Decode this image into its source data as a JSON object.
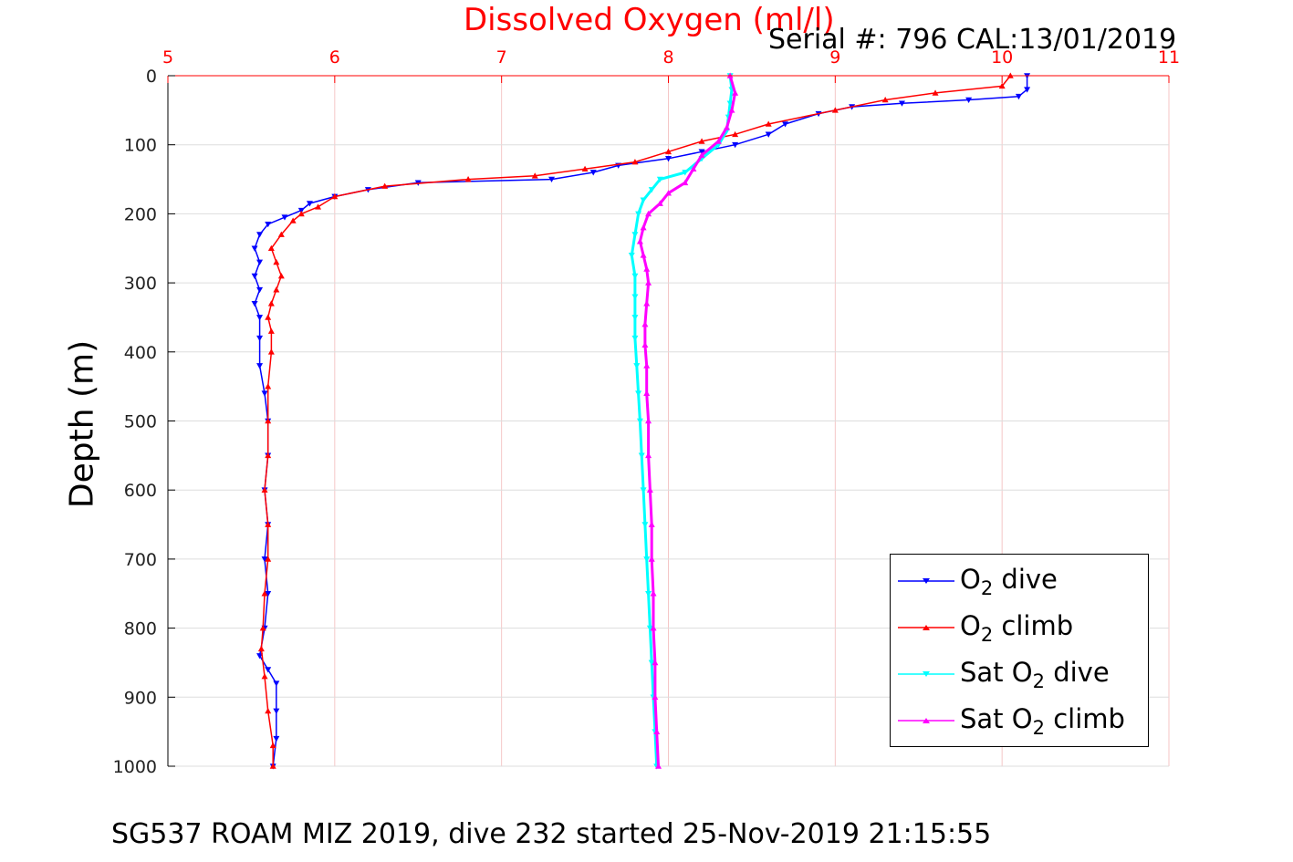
{
  "chart_data": {
    "type": "line",
    "title": "Dissolved Oxygen (ml/l)",
    "subtitle": "Serial #: 796  CAL:13/01/2019",
    "footer": "SG537 ROAM MIZ 2019, dive 232 started 25-Nov-2019 21:15:55",
    "xlabel": "",
    "ylabel": "Depth (m)",
    "xlim": [
      5,
      11
    ],
    "ylim": [
      0,
      1000
    ],
    "y_reversed": true,
    "x_axis_position": "top",
    "x_ticks": [
      "5",
      "6",
      "7",
      "8",
      "9",
      "10",
      "11"
    ],
    "y_ticks": [
      "0",
      "100",
      "200",
      "300",
      "400",
      "500",
      "600",
      "700",
      "800",
      "900",
      "1000"
    ],
    "grid": true,
    "legend_position": "bottom-right",
    "colors": {
      "o2_dive": "#0000ff",
      "o2_climb": "#ff0000",
      "sat_dive": "#00ffff",
      "sat_climb": "#ff00ff",
      "x_axis": "#ff0000",
      "title": "#ff0000",
      "grid_x": "#f5c6c6",
      "grid_y": "#dddddd"
    },
    "series": [
      {
        "name": "O2 dive",
        "legend_label": {
          "pre": "O",
          "sub": "2",
          "post": " dive"
        },
        "marker": "triangle-down",
        "points": [
          [
            10.15,
            0
          ],
          [
            10.15,
            20
          ],
          [
            10.1,
            30
          ],
          [
            9.8,
            35
          ],
          [
            9.4,
            40
          ],
          [
            9.1,
            45
          ],
          [
            8.9,
            55
          ],
          [
            8.7,
            70
          ],
          [
            8.6,
            85
          ],
          [
            8.4,
            100
          ],
          [
            8.2,
            110
          ],
          [
            8.0,
            120
          ],
          [
            7.7,
            130
          ],
          [
            7.55,
            140
          ],
          [
            7.3,
            150
          ],
          [
            6.5,
            155
          ],
          [
            6.2,
            165
          ],
          [
            6.0,
            175
          ],
          [
            5.85,
            185
          ],
          [
            5.8,
            195
          ],
          [
            5.7,
            205
          ],
          [
            5.6,
            215
          ],
          [
            5.55,
            230
          ],
          [
            5.52,
            250
          ],
          [
            5.55,
            270
          ],
          [
            5.52,
            290
          ],
          [
            5.55,
            310
          ],
          [
            5.52,
            330
          ],
          [
            5.55,
            350
          ],
          [
            5.55,
            380
          ],
          [
            5.55,
            420
          ],
          [
            5.58,
            460
          ],
          [
            5.6,
            500
          ],
          [
            5.6,
            550
          ],
          [
            5.58,
            600
          ],
          [
            5.6,
            650
          ],
          [
            5.58,
            700
          ],
          [
            5.6,
            750
          ],
          [
            5.58,
            800
          ],
          [
            5.55,
            840
          ],
          [
            5.6,
            860
          ],
          [
            5.65,
            880
          ],
          [
            5.65,
            920
          ],
          [
            5.65,
            960
          ],
          [
            5.63,
            1000
          ]
        ]
      },
      {
        "name": "O2 climb",
        "legend_label": {
          "pre": "O",
          "sub": "2",
          "post": " climb"
        },
        "marker": "triangle-up",
        "points": [
          [
            10.05,
            0
          ],
          [
            10.0,
            15
          ],
          [
            9.6,
            25
          ],
          [
            9.3,
            35
          ],
          [
            9.0,
            50
          ],
          [
            8.6,
            70
          ],
          [
            8.4,
            85
          ],
          [
            8.2,
            95
          ],
          [
            8.0,
            110
          ],
          [
            7.8,
            125
          ],
          [
            7.5,
            135
          ],
          [
            7.2,
            145
          ],
          [
            6.8,
            150
          ],
          [
            6.3,
            160
          ],
          [
            6.0,
            175
          ],
          [
            5.9,
            190
          ],
          [
            5.8,
            200
          ],
          [
            5.75,
            210
          ],
          [
            5.68,
            230
          ],
          [
            5.62,
            250
          ],
          [
            5.65,
            270
          ],
          [
            5.68,
            290
          ],
          [
            5.65,
            310
          ],
          [
            5.62,
            330
          ],
          [
            5.6,
            350
          ],
          [
            5.62,
            370
          ],
          [
            5.62,
            400
          ],
          [
            5.6,
            450
          ],
          [
            5.6,
            500
          ],
          [
            5.6,
            550
          ],
          [
            5.58,
            600
          ],
          [
            5.6,
            650
          ],
          [
            5.6,
            700
          ],
          [
            5.58,
            750
          ],
          [
            5.57,
            800
          ],
          [
            5.56,
            830
          ],
          [
            5.58,
            870
          ],
          [
            5.6,
            920
          ],
          [
            5.63,
            970
          ],
          [
            5.63,
            1000
          ]
        ]
      },
      {
        "name": "Sat O2 dive",
        "legend_label": {
          "pre": "Sat O",
          "sub": "2",
          "post": " dive"
        },
        "marker": "triangle-down",
        "points": [
          [
            8.37,
            0
          ],
          [
            8.38,
            20
          ],
          [
            8.37,
            40
          ],
          [
            8.36,
            60
          ],
          [
            8.35,
            80
          ],
          [
            8.3,
            100
          ],
          [
            8.2,
            120
          ],
          [
            8.1,
            140
          ],
          [
            7.95,
            150
          ],
          [
            7.9,
            165
          ],
          [
            7.85,
            180
          ],
          [
            7.82,
            200
          ],
          [
            7.8,
            230
          ],
          [
            7.78,
            260
          ],
          [
            7.8,
            290
          ],
          [
            7.8,
            320
          ],
          [
            7.8,
            350
          ],
          [
            7.8,
            380
          ],
          [
            7.81,
            420
          ],
          [
            7.82,
            460
          ],
          [
            7.83,
            500
          ],
          [
            7.84,
            550
          ],
          [
            7.85,
            600
          ],
          [
            7.86,
            650
          ],
          [
            7.87,
            700
          ],
          [
            7.88,
            750
          ],
          [
            7.89,
            800
          ],
          [
            7.9,
            850
          ],
          [
            7.91,
            900
          ],
          [
            7.92,
            950
          ],
          [
            7.93,
            1000
          ]
        ]
      },
      {
        "name": "Sat O2 climb",
        "legend_label": {
          "pre": "Sat O",
          "sub": "2",
          "post": " climb"
        },
        "marker": "triangle-up",
        "points": [
          [
            8.37,
            0
          ],
          [
            8.4,
            25
          ],
          [
            8.38,
            50
          ],
          [
            8.35,
            75
          ],
          [
            8.3,
            95
          ],
          [
            8.2,
            115
          ],
          [
            8.15,
            135
          ],
          [
            8.1,
            155
          ],
          [
            8.0,
            170
          ],
          [
            7.95,
            185
          ],
          [
            7.88,
            200
          ],
          [
            7.85,
            220
          ],
          [
            7.83,
            240
          ],
          [
            7.85,
            260
          ],
          [
            7.87,
            280
          ],
          [
            7.88,
            300
          ],
          [
            7.87,
            330
          ],
          [
            7.86,
            360
          ],
          [
            7.86,
            390
          ],
          [
            7.87,
            420
          ],
          [
            7.87,
            460
          ],
          [
            7.88,
            500
          ],
          [
            7.88,
            550
          ],
          [
            7.89,
            600
          ],
          [
            7.9,
            650
          ],
          [
            7.9,
            700
          ],
          [
            7.91,
            750
          ],
          [
            7.91,
            800
          ],
          [
            7.92,
            850
          ],
          [
            7.92,
            900
          ],
          [
            7.93,
            950
          ],
          [
            7.94,
            1000
          ]
        ]
      }
    ]
  }
}
